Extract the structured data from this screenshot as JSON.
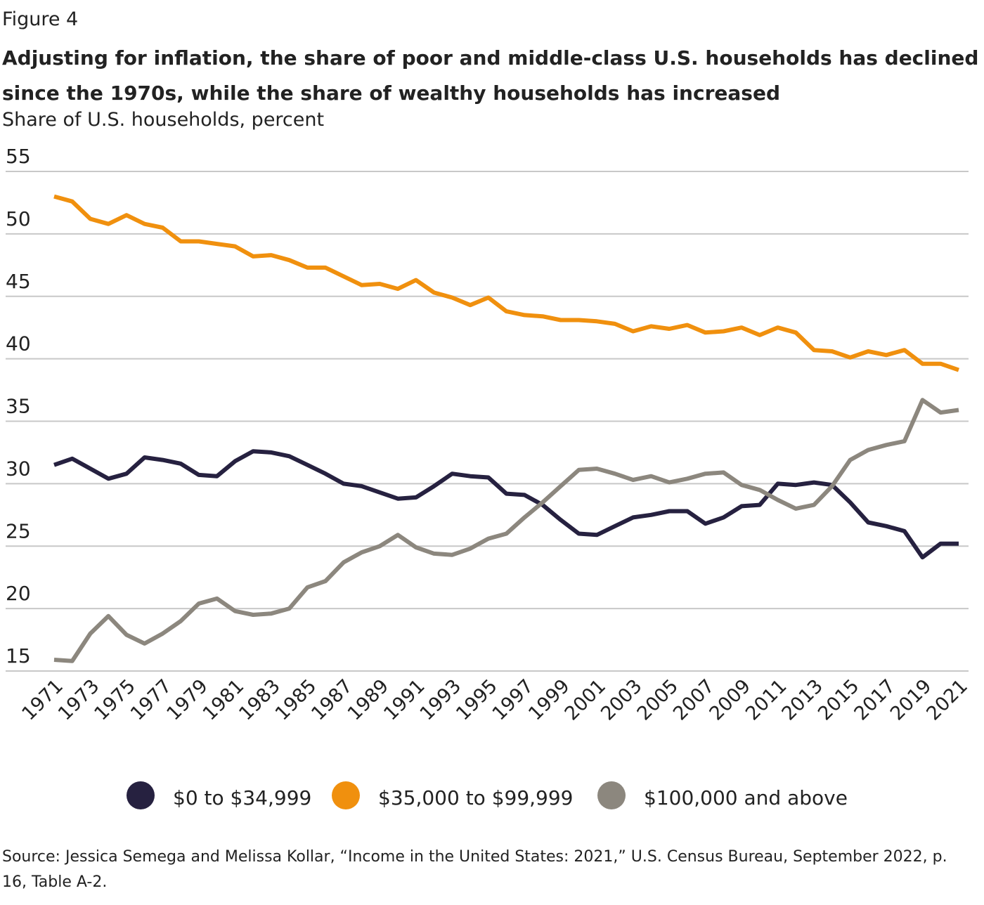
{
  "figure_label": "Figure 4",
  "chart_data": {
    "type": "line",
    "title": "Adjusting for inflation, the share of poor and middle-class U.S. households has declined since the 1970s, while the share of wealthy households has increased",
    "y_label": "Share of U.S. households, percent",
    "x": [
      1971,
      1972,
      1973,
      1974,
      1975,
      1976,
      1977,
      1978,
      1979,
      1980,
      1981,
      1982,
      1983,
      1984,
      1985,
      1986,
      1987,
      1988,
      1989,
      1990,
      1991,
      1992,
      1993,
      1994,
      1995,
      1996,
      1997,
      1998,
      1999,
      2000,
      2001,
      2002,
      2003,
      2004,
      2005,
      2006,
      2007,
      2008,
      2009,
      2010,
      2011,
      2012,
      2013,
      2014,
      2015,
      2016,
      2017,
      2018,
      2019,
      2020,
      2021
    ],
    "series": [
      {
        "name": "$0 to $34,999",
        "color": "#262140",
        "values": [
          31.5,
          32.0,
          31.2,
          30.4,
          30.8,
          32.1,
          31.9,
          31.6,
          30.7,
          30.6,
          31.8,
          32.6,
          32.5,
          32.2,
          31.5,
          30.8,
          30.0,
          29.8,
          29.3,
          28.8,
          28.9,
          29.8,
          30.8,
          30.6,
          30.5,
          29.2,
          29.1,
          28.3,
          27.1,
          26.0,
          25.9,
          26.6,
          27.3,
          27.5,
          27.8,
          27.8,
          26.8,
          27.3,
          28.2,
          28.3,
          30.0,
          29.9,
          30.1,
          29.9,
          28.5,
          26.9,
          26.6,
          26.2,
          24.1,
          25.2,
          25.2
        ]
      },
      {
        "name": "$35,000 to $99,999",
        "color": "#f0900e",
        "values": [
          53.0,
          52.6,
          51.2,
          50.8,
          51.5,
          50.8,
          50.5,
          49.4,
          49.4,
          49.2,
          49.0,
          48.2,
          48.3,
          47.9,
          47.3,
          47.3,
          46.6,
          45.9,
          46.0,
          45.6,
          46.3,
          45.3,
          44.9,
          44.3,
          44.9,
          43.8,
          43.5,
          43.4,
          43.1,
          43.1,
          43.0,
          42.8,
          42.2,
          42.6,
          42.4,
          42.7,
          42.1,
          42.2,
          42.5,
          41.9,
          42.5,
          42.1,
          40.7,
          40.6,
          40.1,
          40.6,
          40.3,
          40.7,
          39.6,
          39.6,
          39.1
        ]
      },
      {
        "name": "$100,000 and above",
        "color": "#8c877e",
        "values": [
          15.9,
          15.8,
          18.0,
          19.4,
          17.9,
          17.2,
          18.0,
          19.0,
          20.4,
          20.8,
          19.8,
          19.5,
          19.6,
          20.0,
          21.7,
          22.2,
          23.7,
          24.5,
          25.0,
          25.9,
          24.9,
          24.4,
          24.3,
          24.8,
          25.6,
          26.0,
          27.3,
          28.5,
          29.8,
          31.1,
          31.2,
          30.8,
          30.3,
          30.6,
          30.1,
          30.4,
          30.8,
          30.9,
          29.9,
          29.5,
          28.7,
          28.0,
          28.3,
          29.8,
          31.9,
          32.7,
          33.1,
          33.4,
          36.7,
          35.7,
          35.9
        ]
      }
    ],
    "xlim": [
      1971,
      2021
    ],
    "xticks": [
      1971,
      1973,
      1975,
      1977,
      1979,
      1981,
      1983,
      1985,
      1987,
      1989,
      1991,
      1993,
      1995,
      1997,
      1999,
      2001,
      2003,
      2005,
      2007,
      2009,
      2011,
      2013,
      2015,
      2017,
      2019,
      2021
    ],
    "ylim": [
      15,
      55
    ],
    "yticks": [
      15,
      20,
      25,
      30,
      35,
      40,
      45,
      50,
      55
    ],
    "grid": true
  },
  "source": "Source: Jessica Semega and Melissa Kollar, “Income in the United States: 2021,” U.S. Census Bureau, September 2022, p. 16, Table A-2."
}
